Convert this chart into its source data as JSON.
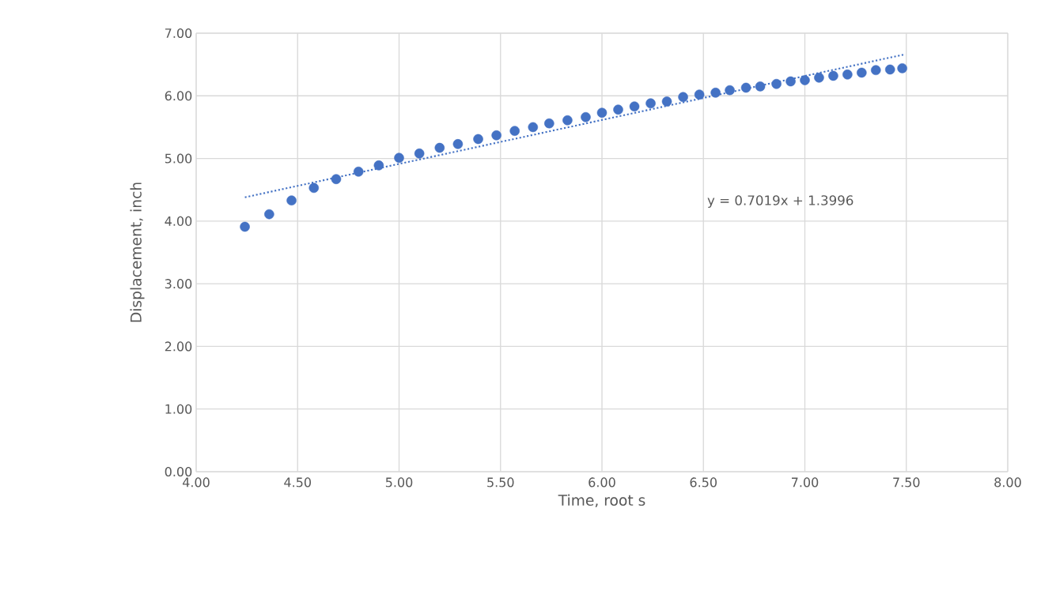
{
  "chart_data": {
    "type": "scatter",
    "xlabel": "Time, root s",
    "ylabel": "Displacement, inch",
    "annotations": [
      "y = 0.7019x + 1.3996"
    ],
    "xlim": [
      4,
      8
    ],
    "ylim": [
      0,
      7
    ],
    "xticks": [
      {
        "value": 4,
        "label": "4.00"
      },
      {
        "value": 4.5,
        "label": "4.50"
      },
      {
        "value": 5,
        "label": "5.00"
      },
      {
        "value": 5.5,
        "label": "5.50"
      },
      {
        "value": 6,
        "label": "6.00"
      },
      {
        "value": 6.5,
        "label": "6.50"
      },
      {
        "value": 7,
        "label": "7.00"
      },
      {
        "value": 7.5,
        "label": "7.50"
      },
      {
        "value": 8,
        "label": "8.00"
      }
    ],
    "yticks": [
      {
        "value": 0,
        "label": "0.00"
      },
      {
        "value": 1,
        "label": "1.00"
      },
      {
        "value": 2,
        "label": "2.00"
      },
      {
        "value": 3,
        "label": "3.00"
      },
      {
        "value": 4,
        "label": "4.00"
      },
      {
        "value": 5,
        "label": "5.00"
      },
      {
        "value": 6,
        "label": "6.00"
      },
      {
        "value": 7,
        "label": "7.00"
      }
    ],
    "grid": true,
    "marker": "circle",
    "series": [
      {
        "color": "#4472c4",
        "x": [
          4.24,
          4.36,
          4.47,
          4.58,
          4.69,
          4.8,
          4.9,
          5.0,
          5.1,
          5.2,
          5.29,
          5.39,
          5.48,
          5.57,
          5.66,
          5.74,
          5.83,
          5.92,
          6.0,
          6.08,
          6.16,
          6.24,
          6.32,
          6.4,
          6.48,
          6.56,
          6.63,
          6.71,
          6.78,
          6.86,
          6.93,
          7.0,
          7.07,
          7.14,
          7.21,
          7.28,
          7.35,
          7.42,
          7.48
        ],
        "values": [
          3.91,
          4.11,
          4.33,
          4.53,
          4.67,
          4.79,
          4.89,
          5.01,
          5.08,
          5.17,
          5.23,
          5.31,
          5.37,
          5.44,
          5.5,
          5.56,
          5.61,
          5.66,
          5.73,
          5.78,
          5.83,
          5.88,
          5.91,
          5.98,
          6.02,
          6.05,
          6.09,
          6.13,
          6.15,
          6.19,
          6.23,
          6.25,
          6.29,
          6.32,
          6.34,
          6.37,
          6.41,
          6.42,
          6.44
        ]
      },
      {
        "type": "line",
        "color": "#4472c4",
        "line_style": "dotted",
        "marker": "none",
        "x": [
          4.24,
          7.49
        ],
        "values": [
          4.38,
          6.66
        ]
      }
    ]
  }
}
